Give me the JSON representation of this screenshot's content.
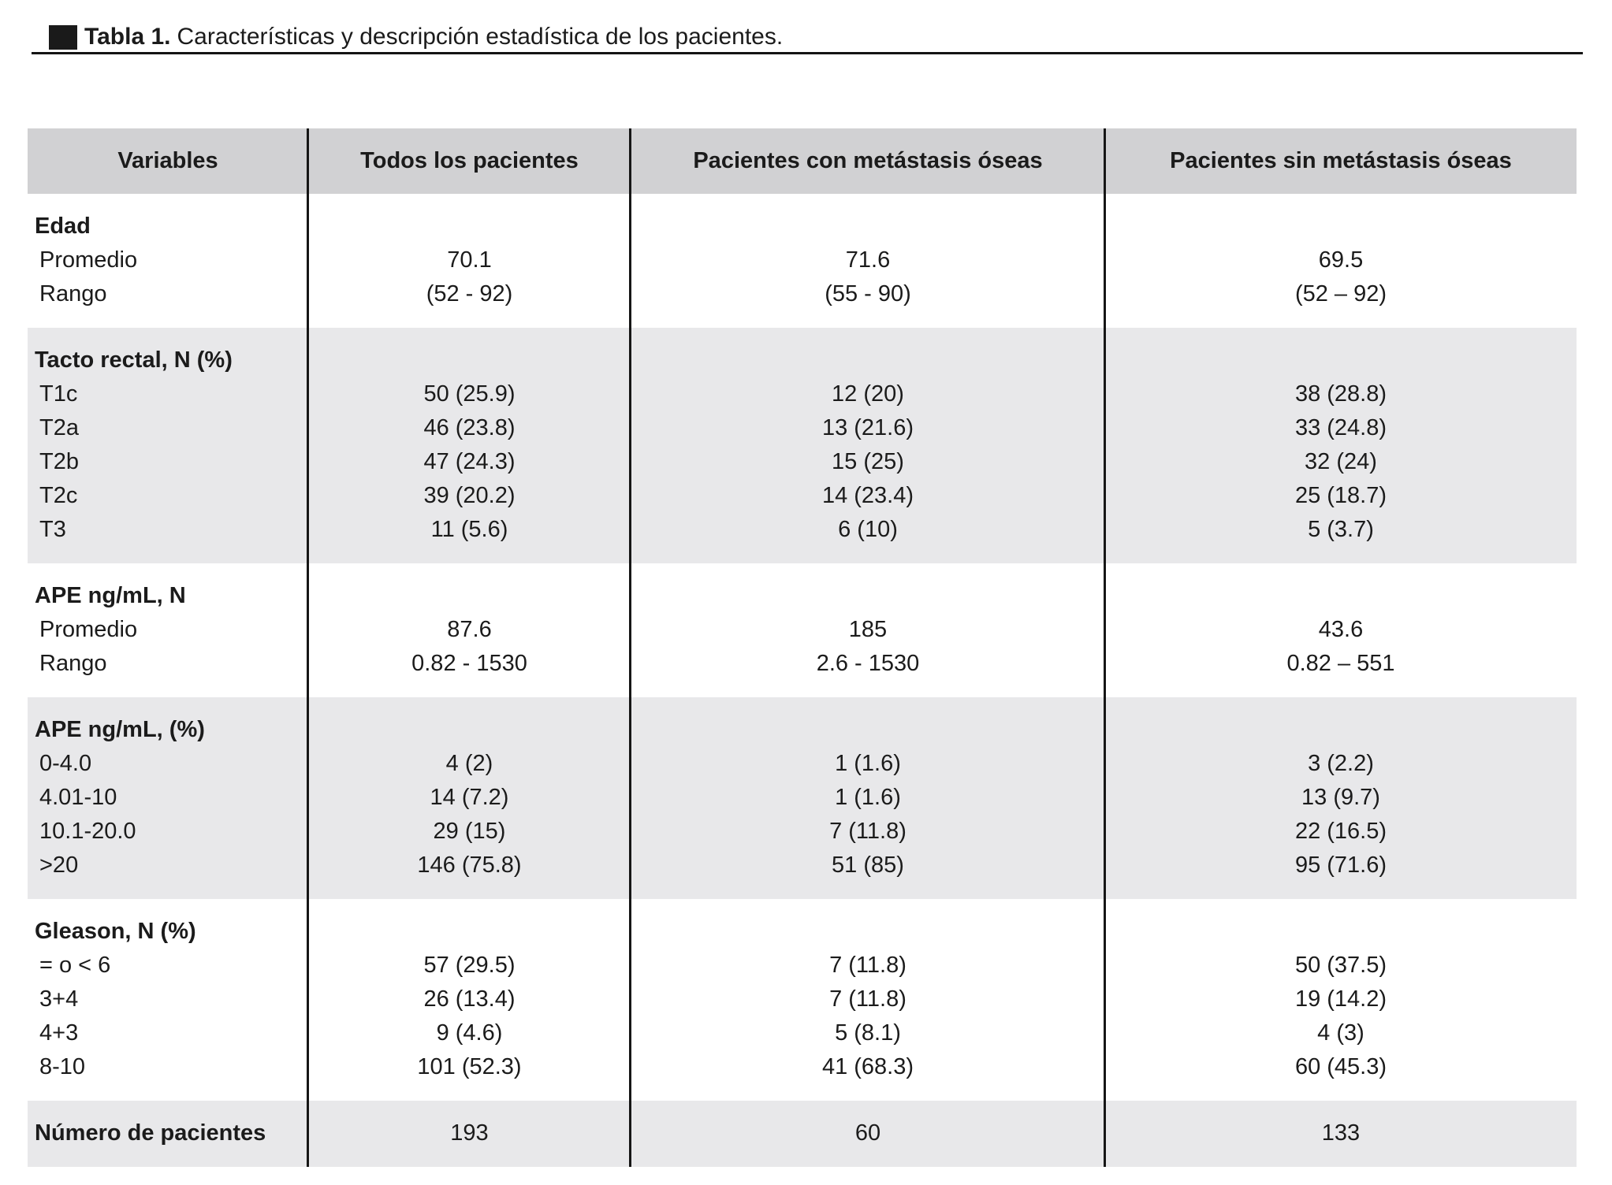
{
  "title": {
    "label": "Tabla 1.",
    "text": "Características y descripción estadística de los pacientes."
  },
  "colors": {
    "header_bg": "#d1d1d3",
    "shaded_row_bg": "#e8e8ea",
    "text": "#1b1b1b",
    "line": "#161616"
  },
  "table": {
    "columns": [
      "Variables",
      "Todos los pacientes",
      "Pacientes con metástasis óseas",
      "Pacientes sin metástasis óseas"
    ],
    "sections": [
      {
        "label": "Edad",
        "shaded": false,
        "label_cells": [
          "",
          "",
          ""
        ],
        "rows": [
          {
            "label": "Promedio",
            "cells": [
              "70.1",
              "71.6",
              "69.5"
            ]
          },
          {
            "label": "Rango",
            "cells": [
              "(52 - 92)",
              "(55 - 90)",
              "(52 – 92)"
            ]
          }
        ]
      },
      {
        "label": "Tacto rectal, N (%)",
        "shaded": true,
        "label_cells": [
          "",
          "",
          ""
        ],
        "rows": [
          {
            "label": "T1c",
            "cells": [
              "50 (25.9)",
              "12 (20)",
              "38 (28.8)"
            ]
          },
          {
            "label": "T2a",
            "cells": [
              "46 (23.8)",
              "13 (21.6)",
              "33 (24.8)"
            ]
          },
          {
            "label": "T2b",
            "cells": [
              "47 (24.3)",
              "15 (25)",
              "32 (24)"
            ]
          },
          {
            "label": "T2c",
            "cells": [
              "39 (20.2)",
              "14 (23.4)",
              "25 (18.7)"
            ]
          },
          {
            "label": "T3",
            "cells": [
              "11 (5.6)",
              "6 (10)",
              "5 (3.7)"
            ]
          }
        ]
      },
      {
        "label": "APE ng/mL, N",
        "shaded": false,
        "label_cells": [
          "",
          "",
          ""
        ],
        "rows": [
          {
            "label": "Promedio",
            "cells": [
              "87.6",
              "185",
              "43.6"
            ]
          },
          {
            "label": "Rango",
            "cells": [
              "0.82 - 1530",
              "2.6 - 1530",
              "0.82 – 551"
            ]
          }
        ]
      },
      {
        "label": "APE ng/mL, (%)",
        "shaded": true,
        "label_cells": [
          "",
          "",
          ""
        ],
        "rows": [
          {
            "label": "0-4.0",
            "cells": [
              "4 (2)",
              "1 (1.6)",
              "3 (2.2)"
            ]
          },
          {
            "label": "4.01-10",
            "cells": [
              "14 (7.2)",
              "1 (1.6)",
              "13 (9.7)"
            ]
          },
          {
            "label": "10.1-20.0",
            "cells": [
              "29 (15)",
              "7 (11.8)",
              "22 (16.5)"
            ]
          },
          {
            "label": ">20",
            "cells": [
              "146 (75.8)",
              "51 (85)",
              "95 (71.6)"
            ]
          }
        ]
      },
      {
        "label": "Gleason, N (%)",
        "shaded": false,
        "label_cells": [
          "",
          "",
          ""
        ],
        "rows": [
          {
            "label": "= o < 6",
            "cells": [
              "57 (29.5)",
              "7 (11.8)",
              "50 (37.5)"
            ]
          },
          {
            "label": "3+4",
            "cells": [
              "26 (13.4)",
              "7 (11.8)",
              "19 (14.2)"
            ]
          },
          {
            "label": "4+3",
            "cells": [
              "9 (4.6)",
              "5 (8.1)",
              "4 (3)"
            ]
          },
          {
            "label": "8-10",
            "cells": [
              "101 (52.3)",
              "41 (68.3)",
              "60 (45.3)"
            ]
          }
        ]
      },
      {
        "label": "Número de pacientes",
        "shaded": true,
        "label_cells": [
          "193",
          "60",
          "133"
        ],
        "rows": []
      }
    ]
  }
}
